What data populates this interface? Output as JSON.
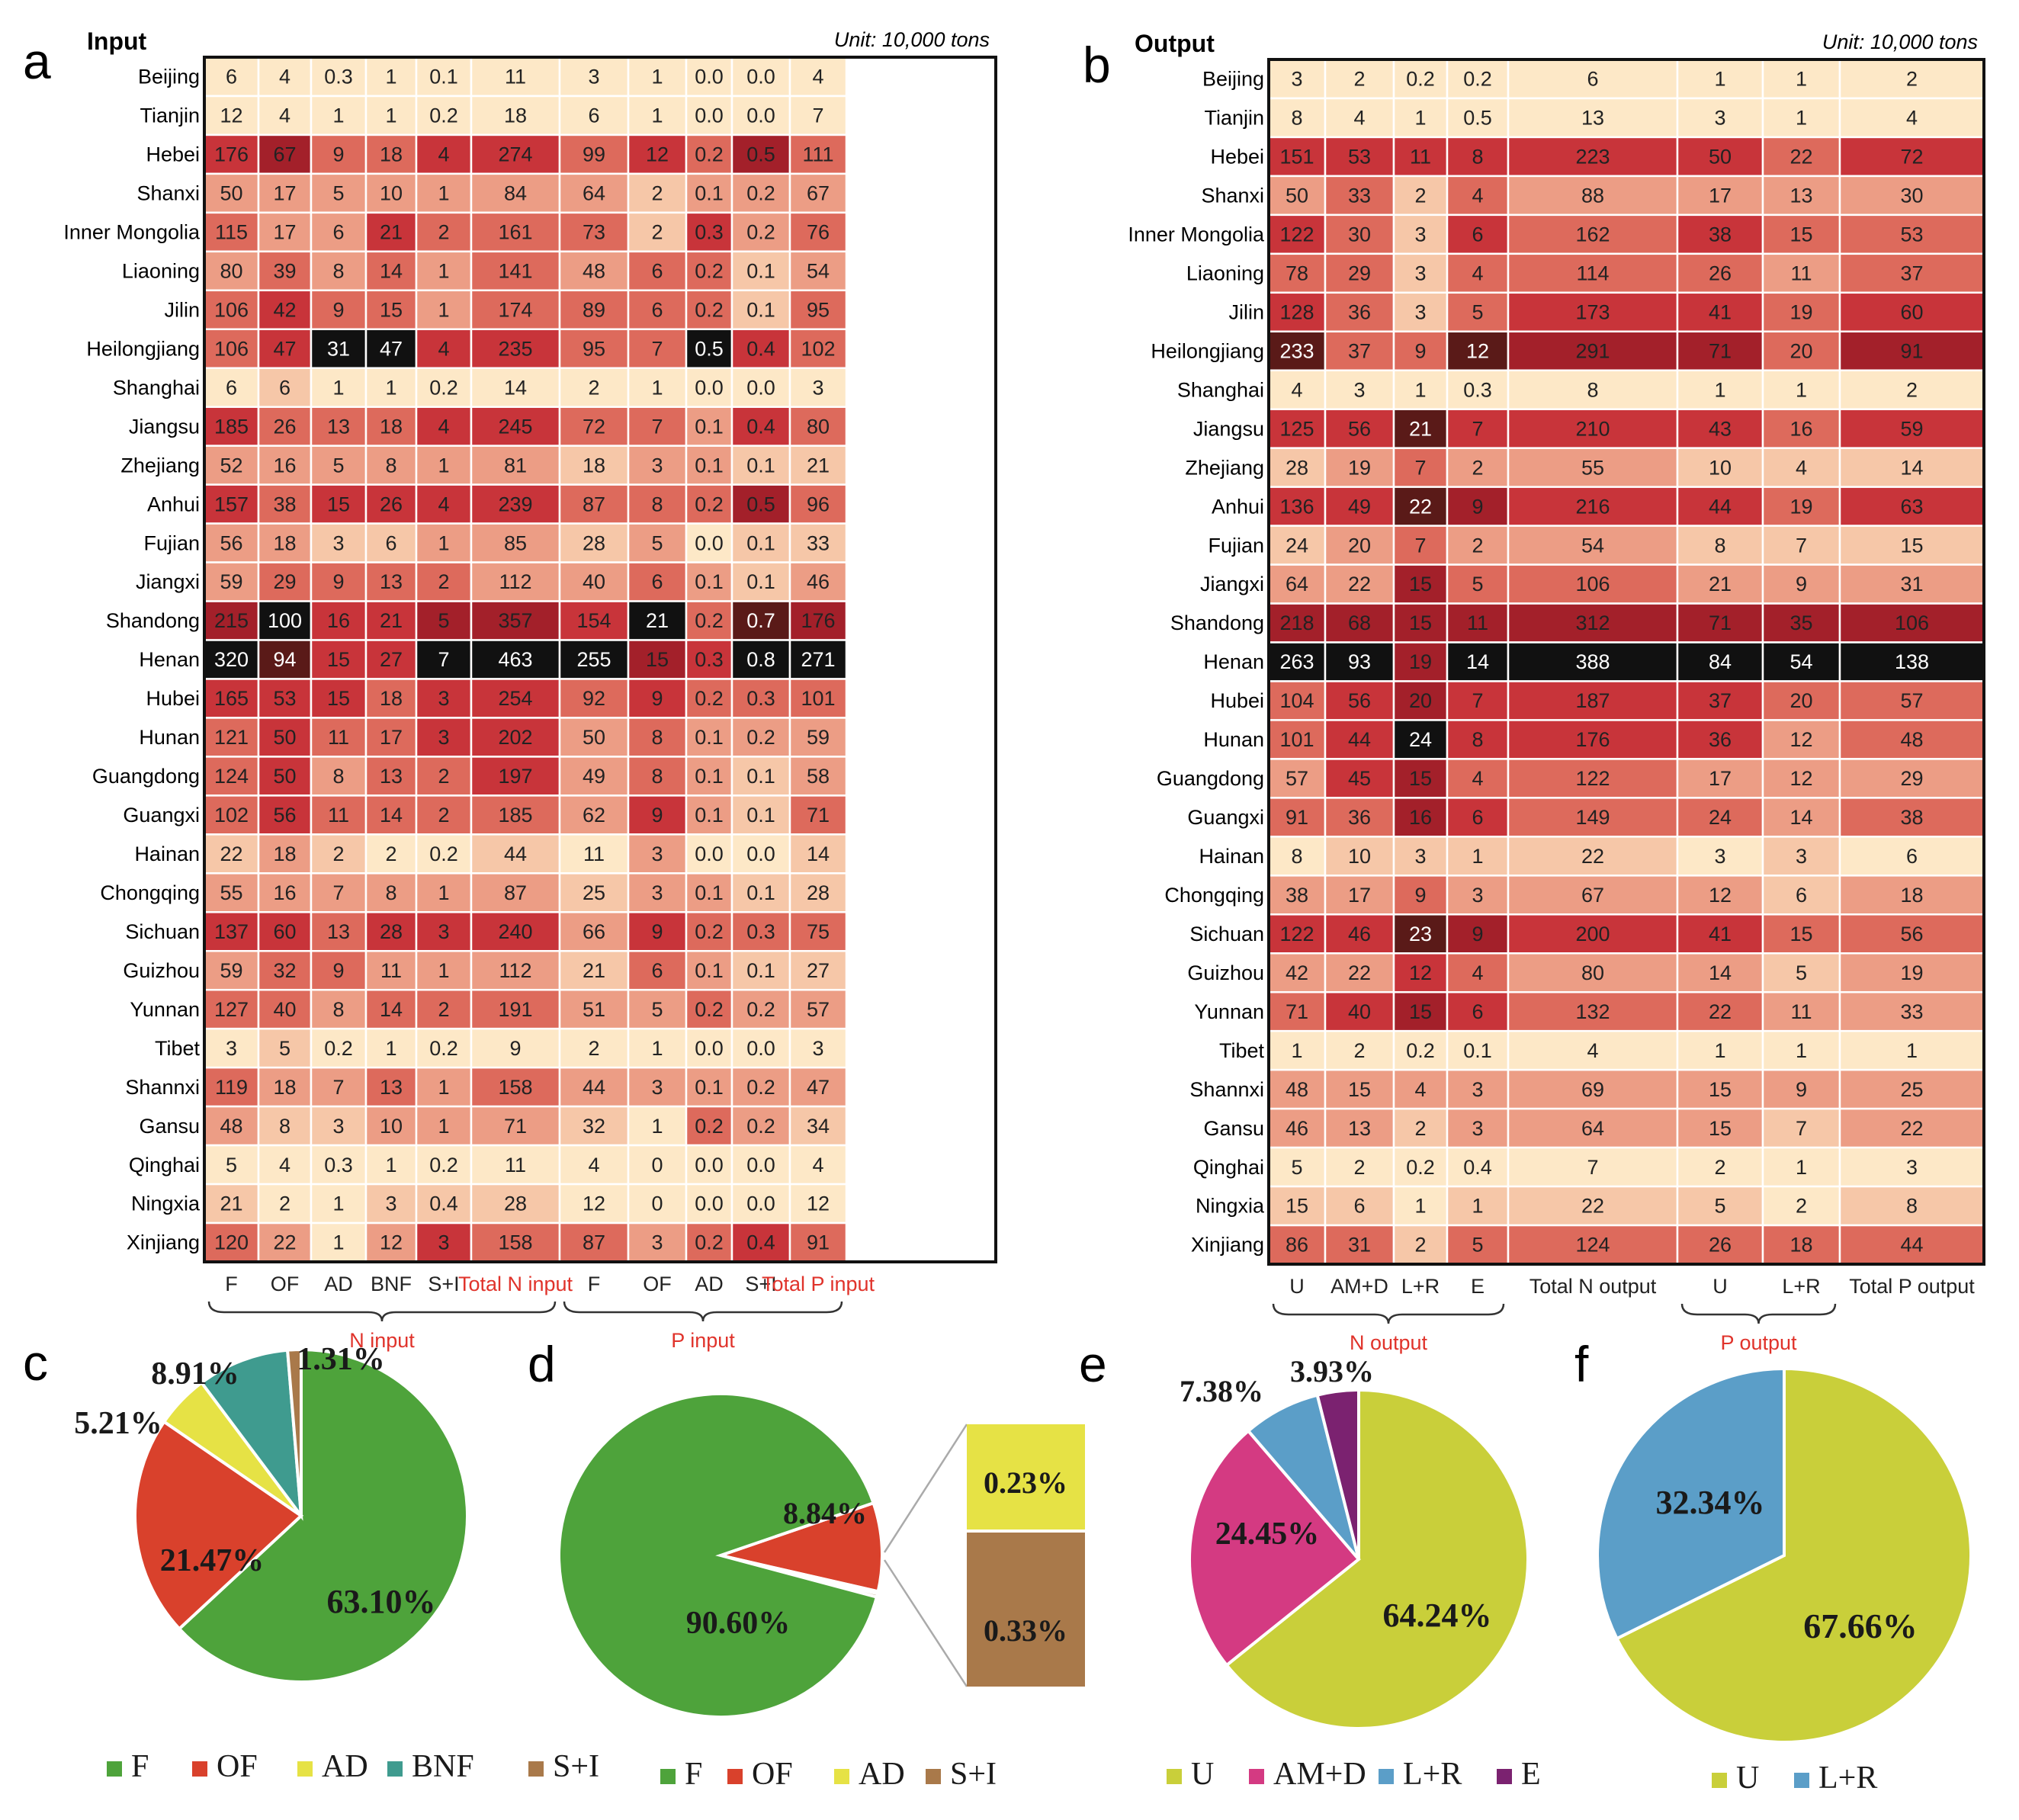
{
  "panel_letters": {
    "a": "a",
    "b": "b",
    "c": "c",
    "d": "d",
    "e": "e",
    "f": "f"
  },
  "colors": {
    "F": "#4ea33b",
    "OF": "#d9412c",
    "AD": "#e6e245",
    "BNF": "#3f9b8f",
    "S+I": "#a9794a",
    "U": "#c9cf3a",
    "AM+D": "#d43a82",
    "L+R": "#5b9ec8",
    "E": "#7b2270",
    "red_label": "#e0332b",
    "heat_scale": [
      "#fde8c7",
      "#f6c7a8",
      "#ec9d85",
      "#dd6a5c",
      "#c8343a",
      "#a3202a",
      "#5a1a18",
      "#111111"
    ]
  },
  "chart_data": [
    {
      "type": "heatmap",
      "panel": "a",
      "title": "Input",
      "unit": "Unit: 10,000 tons",
      "rows": [
        "Beijing",
        "Tianjin",
        "Hebei",
        "Shanxi",
        "Inner Mongolia",
        "Liaoning",
        "Jilin",
        "Heilongjiang",
        "Shanghai",
        "Jiangsu",
        "Zhejiang",
        "Anhui",
        "Fujian",
        "Jiangxi",
        "Shandong",
        "Henan",
        "Hubei",
        "Hunan",
        "Guangdong",
        "Guangxi",
        "Hainan",
        "Chongqing",
        "Sichuan",
        "Guizhou",
        "Yunnan",
        "Tibet",
        "Shannxi",
        "Gansu",
        "Qinghai",
        "Ningxia",
        "Xinjiang"
      ],
      "columns": [
        "F",
        "OF",
        "AD",
        "BNF",
        "S+I",
        "Total N input",
        "F",
        "OF",
        "AD",
        "S+I",
        "Total P input"
      ],
      "group_labels": [
        "N input",
        "P input"
      ],
      "values": [
        [
          "6",
          "4",
          "0.3",
          "1",
          "0.1",
          "11",
          "3",
          "1",
          "0.0",
          "0.0",
          "4"
        ],
        [
          "12",
          "4",
          "1",
          "1",
          "0.2",
          "18",
          "6",
          "1",
          "0.0",
          "0.0",
          "7"
        ],
        [
          "176",
          "67",
          "9",
          "18",
          "4",
          "274",
          "99",
          "12",
          "0.2",
          "0.5",
          "111"
        ],
        [
          "50",
          "17",
          "5",
          "10",
          "1",
          "84",
          "64",
          "2",
          "0.1",
          "0.2",
          "67"
        ],
        [
          "115",
          "17",
          "6",
          "21",
          "2",
          "161",
          "73",
          "2",
          "0.3",
          "0.2",
          "76"
        ],
        [
          "80",
          "39",
          "8",
          "14",
          "1",
          "141",
          "48",
          "6",
          "0.2",
          "0.1",
          "54"
        ],
        [
          "106",
          "42",
          "9",
          "15",
          "1",
          "174",
          "89",
          "6",
          "0.2",
          "0.1",
          "95"
        ],
        [
          "106",
          "47",
          "31",
          "47",
          "4",
          "235",
          "95",
          "7",
          "0.5",
          "0.4",
          "102"
        ],
        [
          "6",
          "6",
          "1",
          "1",
          "0.2",
          "14",
          "2",
          "1",
          "0.0",
          "0.0",
          "3"
        ],
        [
          "185",
          "26",
          "13",
          "18",
          "4",
          "245",
          "72",
          "7",
          "0.1",
          "0.4",
          "80"
        ],
        [
          "52",
          "16",
          "5",
          "8",
          "1",
          "81",
          "18",
          "3",
          "0.1",
          "0.1",
          "21"
        ],
        [
          "157",
          "38",
          "15",
          "26",
          "4",
          "239",
          "87",
          "8",
          "0.2",
          "0.5",
          "96"
        ],
        [
          "56",
          "18",
          "3",
          "6",
          "1",
          "85",
          "28",
          "5",
          "0.0",
          "0.1",
          "33"
        ],
        [
          "59",
          "29",
          "9",
          "13",
          "2",
          "112",
          "40",
          "6",
          "0.1",
          "0.1",
          "46"
        ],
        [
          "215",
          "100",
          "16",
          "21",
          "5",
          "357",
          "154",
          "21",
          "0.2",
          "0.7",
          "176"
        ],
        [
          "320",
          "94",
          "15",
          "27",
          "7",
          "463",
          "255",
          "15",
          "0.3",
          "0.8",
          "271"
        ],
        [
          "165",
          "53",
          "15",
          "18",
          "3",
          "254",
          "92",
          "9",
          "0.2",
          "0.3",
          "101"
        ],
        [
          "121",
          "50",
          "11",
          "17",
          "3",
          "202",
          "50",
          "8",
          "0.1",
          "0.2",
          "59"
        ],
        [
          "124",
          "50",
          "8",
          "13",
          "2",
          "197",
          "49",
          "8",
          "0.1",
          "0.1",
          "58"
        ],
        [
          "102",
          "56",
          "11",
          "14",
          "2",
          "185",
          "62",
          "9",
          "0.1",
          "0.1",
          "71"
        ],
        [
          "22",
          "18",
          "2",
          "2",
          "0.2",
          "44",
          "11",
          "3",
          "0.0",
          "0.0",
          "14"
        ],
        [
          "55",
          "16",
          "7",
          "8",
          "1",
          "87",
          "25",
          "3",
          "0.1",
          "0.1",
          "28"
        ],
        [
          "137",
          "60",
          "13",
          "28",
          "3",
          "240",
          "66",
          "9",
          "0.2",
          "0.3",
          "75"
        ],
        [
          "59",
          "32",
          "9",
          "11",
          "1",
          "112",
          "21",
          "6",
          "0.1",
          "0.1",
          "27"
        ],
        [
          "127",
          "40",
          "8",
          "14",
          "2",
          "191",
          "51",
          "5",
          "0.2",
          "0.2",
          "57"
        ],
        [
          "3",
          "5",
          "0.2",
          "1",
          "0.2",
          "9",
          "2",
          "1",
          "0.0",
          "0.0",
          "3"
        ],
        [
          "119",
          "18",
          "7",
          "13",
          "1",
          "158",
          "44",
          "3",
          "0.1",
          "0.2",
          "47"
        ],
        [
          "48",
          "8",
          "3",
          "10",
          "1",
          "71",
          "32",
          "1",
          "0.2",
          "0.2",
          "34"
        ],
        [
          "5",
          "4",
          "0.3",
          "1",
          "0.2",
          "11",
          "4",
          "0",
          "0.0",
          "0.0",
          "4"
        ],
        [
          "21",
          "2",
          "1",
          "3",
          "0.4",
          "28",
          "12",
          "0",
          "0.0",
          "0.0",
          "12"
        ],
        [
          "120",
          "22",
          "1",
          "12",
          "3",
          "158",
          "87",
          "3",
          "0.2",
          "0.4",
          "91"
        ]
      ]
    },
    {
      "type": "heatmap",
      "panel": "b",
      "title": "Output",
      "unit": "Unit: 10,000 tons",
      "rows": [
        "Beijing",
        "Tianjin",
        "Hebei",
        "Shanxi",
        "Inner Mongolia",
        "Liaoning",
        "Jilin",
        "Heilongjiang",
        "Shanghai",
        "Jiangsu",
        "Zhejiang",
        "Anhui",
        "Fujian",
        "Jiangxi",
        "Shandong",
        "Henan",
        "Hubei",
        "Hunan",
        "Guangdong",
        "Guangxi",
        "Hainan",
        "Chongqing",
        "Sichuan",
        "Guizhou",
        "Yunnan",
        "Tibet",
        "Shannxi",
        "Gansu",
        "Qinghai",
        "Ningxia",
        "Xinjiang"
      ],
      "columns": [
        "U",
        "AM+D",
        "L+R",
        "E",
        "Total N output",
        "U",
        "L+R",
        "Total P output"
      ],
      "group_labels": [
        "N output",
        "P output"
      ],
      "values": [
        [
          "3",
          "2",
          "0.2",
          "0.2",
          "6",
          "1",
          "1",
          "2"
        ],
        [
          "8",
          "4",
          "1",
          "0.5",
          "13",
          "3",
          "1",
          "4"
        ],
        [
          "151",
          "53",
          "11",
          "8",
          "223",
          "50",
          "22",
          "72"
        ],
        [
          "50",
          "33",
          "2",
          "4",
          "88",
          "17",
          "13",
          "30"
        ],
        [
          "122",
          "30",
          "3",
          "6",
          "162",
          "38",
          "15",
          "53"
        ],
        [
          "78",
          "29",
          "3",
          "4",
          "114",
          "26",
          "11",
          "37"
        ],
        [
          "128",
          "36",
          "3",
          "5",
          "173",
          "41",
          "19",
          "60"
        ],
        [
          "233",
          "37",
          "9",
          "12",
          "291",
          "71",
          "20",
          "91"
        ],
        [
          "4",
          "3",
          "1",
          "0.3",
          "8",
          "1",
          "1",
          "2"
        ],
        [
          "125",
          "56",
          "21",
          "7",
          "210",
          "43",
          "16",
          "59"
        ],
        [
          "28",
          "19",
          "7",
          "2",
          "55",
          "10",
          "4",
          "14"
        ],
        [
          "136",
          "49",
          "22",
          "9",
          "216",
          "44",
          "19",
          "63"
        ],
        [
          "24",
          "20",
          "7",
          "2",
          "54",
          "8",
          "7",
          "15"
        ],
        [
          "64",
          "22",
          "15",
          "5",
          "106",
          "21",
          "9",
          "31"
        ],
        [
          "218",
          "68",
          "15",
          "11",
          "312",
          "71",
          "35",
          "106"
        ],
        [
          "263",
          "93",
          "19",
          "14",
          "388",
          "84",
          "54",
          "138"
        ],
        [
          "104",
          "56",
          "20",
          "7",
          "187",
          "37",
          "20",
          "57"
        ],
        [
          "101",
          "44",
          "24",
          "8",
          "176",
          "36",
          "12",
          "48"
        ],
        [
          "57",
          "45",
          "15",
          "4",
          "122",
          "17",
          "12",
          "29"
        ],
        [
          "91",
          "36",
          "16",
          "6",
          "149",
          "24",
          "14",
          "38"
        ],
        [
          "8",
          "10",
          "3",
          "1",
          "22",
          "3",
          "3",
          "6"
        ],
        [
          "38",
          "17",
          "9",
          "3",
          "67",
          "12",
          "6",
          "18"
        ],
        [
          "122",
          "46",
          "23",
          "9",
          "200",
          "41",
          "15",
          "56"
        ],
        [
          "42",
          "22",
          "12",
          "4",
          "80",
          "14",
          "5",
          "19"
        ],
        [
          "71",
          "40",
          "15",
          "6",
          "132",
          "22",
          "11",
          "33"
        ],
        [
          "1",
          "2",
          "0.2",
          "0.1",
          "4",
          "1",
          "1",
          "1"
        ],
        [
          "48",
          "15",
          "4",
          "3",
          "69",
          "15",
          "9",
          "25"
        ],
        [
          "46",
          "13",
          "2",
          "3",
          "64",
          "15",
          "7",
          "22"
        ],
        [
          "5",
          "2",
          "0.2",
          "0.4",
          "7",
          "2",
          "1",
          "3"
        ],
        [
          "15",
          "6",
          "1",
          "1",
          "22",
          "5",
          "2",
          "8"
        ],
        [
          "86",
          "31",
          "2",
          "5",
          "124",
          "26",
          "18",
          "44"
        ]
      ]
    },
    {
      "type": "pie",
      "panel": "c",
      "labels": [
        "F",
        "OF",
        "AD",
        "BNF",
        "S+I"
      ],
      "values": [
        63.1,
        21.47,
        5.21,
        8.91,
        1.31
      ],
      "value_labels": [
        "63.10%",
        "21.47%",
        "5.21%",
        "8.91%",
        "1.31%"
      ]
    },
    {
      "type": "pie",
      "panel": "d",
      "labels": [
        "F",
        "OF",
        "AD",
        "S+I"
      ],
      "values": [
        90.6,
        8.84,
        0.23,
        0.33
      ],
      "value_labels": [
        "90.60%",
        "8.84%",
        "0.23%",
        "0.33%"
      ]
    },
    {
      "type": "pie",
      "panel": "e",
      "labels": [
        "U",
        "AM+D",
        "L+R",
        "E"
      ],
      "values": [
        64.24,
        24.45,
        7.38,
        3.93
      ],
      "value_labels": [
        "64.24%",
        "24.45%",
        "7.38%",
        "3.93%"
      ]
    },
    {
      "type": "pie",
      "panel": "f",
      "labels": [
        "U",
        "L+R"
      ],
      "values": [
        67.66,
        32.34
      ],
      "value_labels": [
        "67.66%",
        "32.34%"
      ]
    }
  ]
}
